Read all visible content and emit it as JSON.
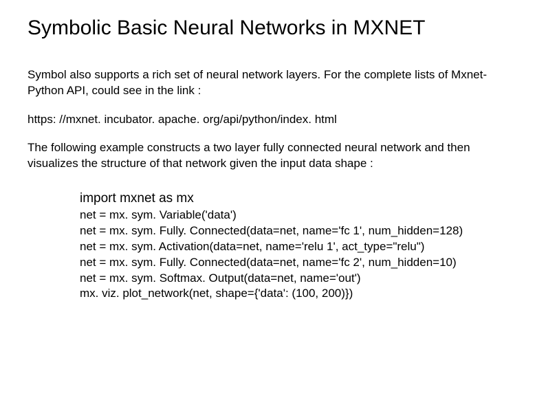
{
  "title": "Symbolic Basic Neural Networks in MXNET",
  "paragraph1": "Symbol also supports a rich set of neural network layers. For the complete lists of Mxnet-Python API, could see in the link :",
  "link": "https: //mxnet. incubator. apache. org/api/python/index. html",
  "paragraph2": "The following example constructs a two layer fully connected neural network and then visualizes the structure of that network given the input data shape :",
  "code": {
    "import_line": "import mxnet as mx",
    "line1": "net = mx. sym. Variable('data')",
    "line2": "net = mx. sym. Fully. Connected(data=net, name='fc 1', num_hidden=128)",
    "line3": "net = mx. sym. Activation(data=net, name='relu 1', act_type=\"relu\")",
    "line4": "net = mx. sym. Fully. Connected(data=net, name='fc 2', num_hidden=10)",
    "line5": "net = mx. sym. Softmax. Output(data=net, name='out')",
    "line6": "mx. viz. plot_network(net, shape={'data': (100, 200)})"
  }
}
